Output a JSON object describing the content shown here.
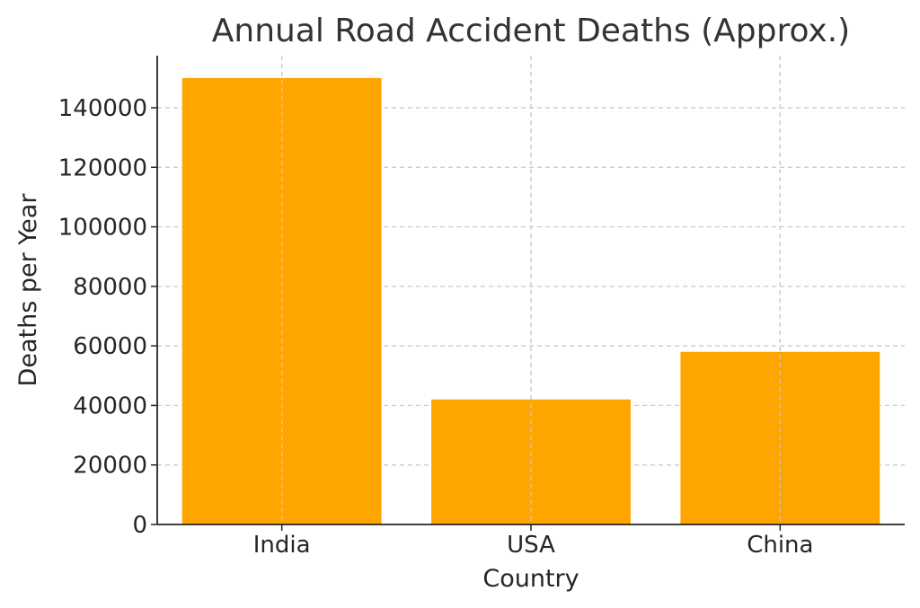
{
  "chart_data": {
    "type": "bar",
    "title": "Annual Road Accident Deaths (Approx.)",
    "xlabel": "Country",
    "ylabel": "Deaths per Year",
    "categories": [
      "India",
      "USA",
      "China"
    ],
    "values": [
      150000,
      42000,
      58000
    ],
    "ylim": [
      0,
      157500
    ],
    "yticks": [
      0,
      20000,
      40000,
      60000,
      80000,
      100000,
      120000,
      140000
    ],
    "grid": true,
    "bar_color": "#ffa500"
  }
}
